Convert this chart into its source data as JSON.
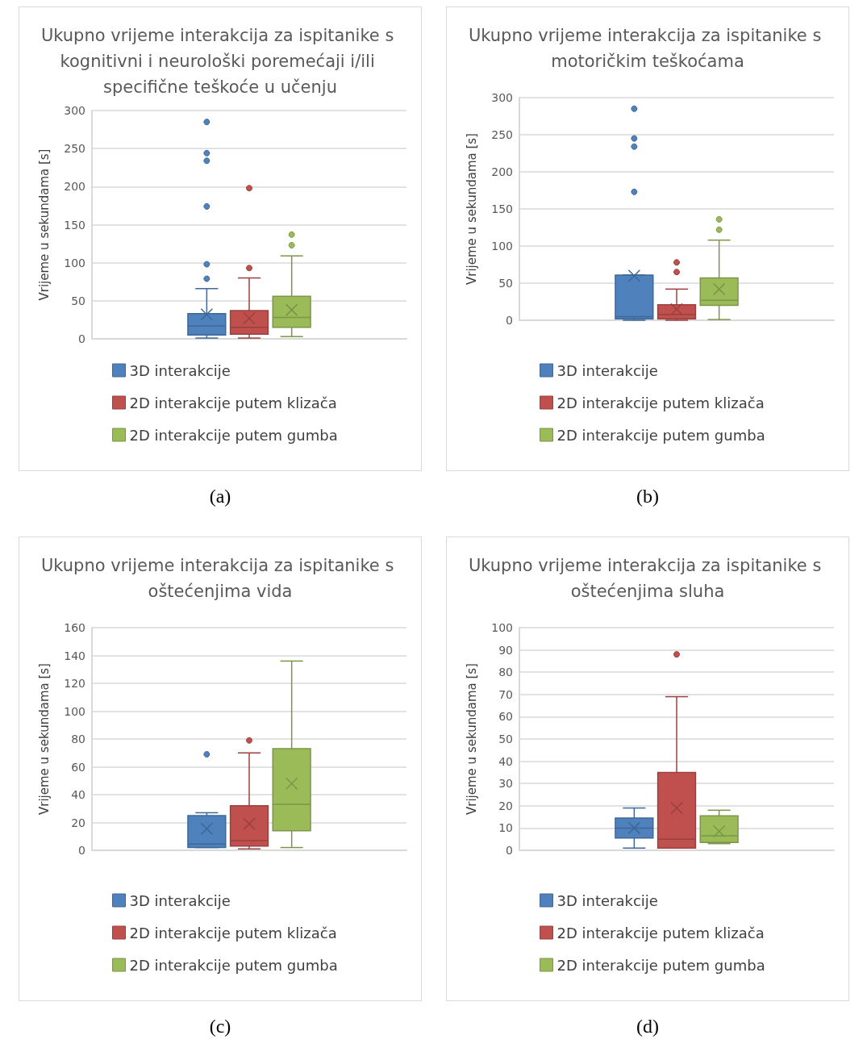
{
  "chart_data": [
    {
      "type": "box",
      "title": "Ukupno vrijeme interakcija za ispitanike s kognitivni i neurološki poremećaji i/ili specifične teškoće u učenju",
      "ylabel": "Vrijeme u sekundama [s]",
      "categories": [
        null
      ],
      "ylim": [
        0,
        300
      ],
      "yticks": [
        0,
        50,
        100,
        150,
        200,
        250,
        300
      ],
      "grid": "y",
      "legend": "bottom",
      "annotations": [
        "(a)"
      ],
      "series": [
        {
          "name": "3D interakcije",
          "color": "#4f81bd",
          "boxes": [
            {
              "low": 1,
              "q1": 5,
              "median": 17,
              "q3": 33,
              "high": 66,
              "mean": 32,
              "outliers": [
                79,
                98,
                174,
                234,
                244,
                285
              ]
            }
          ]
        },
        {
          "name": "2D interakcije putem klizača",
          "color": "#c0504d",
          "boxes": [
            {
              "low": 1,
              "q1": 6,
              "median": 15,
              "q3": 37,
              "high": 80,
              "mean": 27,
              "outliers": [
                93,
                198
              ]
            }
          ]
        },
        {
          "name": "2D interakcije putem gumba",
          "color": "#9bbb59",
          "boxes": [
            {
              "low": 3,
              "q1": 15,
              "median": 28,
              "q3": 56,
              "high": 109,
              "mean": 38,
              "outliers": [
                123,
                137
              ]
            }
          ]
        }
      ]
    },
    {
      "type": "box",
      "title": "Ukupno vrijeme interakcija za ispitanike s motoričkim teškoćama",
      "ylabel": "Vrijeme u sekundama [s]",
      "categories": [
        null
      ],
      "ylim": [
        0,
        300
      ],
      "yticks": [
        0,
        50,
        100,
        150,
        200,
        250,
        300
      ],
      "grid": "y",
      "legend": "bottom",
      "annotations": [
        "(b)"
      ],
      "series": [
        {
          "name": "3D interakcije",
          "color": "#4f81bd",
          "boxes": [
            {
              "low": 0,
              "q1": 2,
              "median": 5,
              "q3": 61,
              "high": 61,
              "mean": 60,
              "outliers": [
                173,
                234,
                245,
                285
              ]
            }
          ]
        },
        {
          "name": "2D interakcije putem klizača",
          "color": "#c0504d",
          "boxes": [
            {
              "low": 0,
              "q1": 2,
              "median": 8,
              "q3": 21,
              "high": 42,
              "mean": 15,
              "outliers": [
                65,
                78
              ]
            }
          ]
        },
        {
          "name": "2D interakcije putem gumba",
          "color": "#9bbb59",
          "boxes": [
            {
              "low": 1,
              "q1": 20,
              "median": 27,
              "q3": 57,
              "high": 108,
              "mean": 42,
              "outliers": [
                122,
                136
              ]
            }
          ]
        }
      ]
    },
    {
      "type": "box",
      "title": "Ukupno vrijeme interakcija za ispitanike s oštećenjima vida",
      "ylabel": "Vrijeme u sekundama [s]",
      "categories": [
        null
      ],
      "ylim": [
        0,
        160
      ],
      "yticks": [
        0,
        20,
        40,
        60,
        80,
        100,
        120,
        140,
        160
      ],
      "grid": "y",
      "legend": "bottom",
      "annotations": [
        "(c)"
      ],
      "series": [
        {
          "name": "3D interakcije",
          "color": "#4f81bd",
          "boxes": [
            {
              "low": 2,
              "q1": 2,
              "median": 4.5,
              "q3": 25,
              "high": 27,
              "mean": 15.5,
              "outliers": [
                69
              ]
            }
          ]
        },
        {
          "name": "2D interakcije putem klizača",
          "color": "#c0504d",
          "boxes": [
            {
              "low": 1,
              "q1": 3,
              "median": 7,
              "q3": 32,
              "high": 70,
              "mean": 19,
              "outliers": [
                79
              ]
            }
          ]
        },
        {
          "name": "2D interakcije putem gumba",
          "color": "#9bbb59",
          "boxes": [
            {
              "low": 2,
              "q1": 14,
              "median": 33,
              "q3": 73,
              "high": 136,
              "mean": 48
            }
          ]
        }
      ]
    },
    {
      "type": "box",
      "title": "Ukupno vrijeme interakcija za ispitanike s oštećenjima sluha",
      "ylabel": "Vrijeme u sekundama [s]",
      "categories": [
        null
      ],
      "ylim": [
        0,
        100
      ],
      "yticks": [
        0,
        10,
        20,
        30,
        40,
        50,
        60,
        70,
        80,
        90,
        100
      ],
      "grid": "y",
      "legend": "bottom",
      "annotations": [
        "(d)"
      ],
      "series": [
        {
          "name": "3D interakcije",
          "color": "#4f81bd",
          "boxes": [
            {
              "low": 1,
              "q1": 5.5,
              "median": 10,
              "q3": 14.5,
              "high": 19,
              "mean": 10
            }
          ]
        },
        {
          "name": "2D interakcije putem klizača",
          "color": "#c0504d",
          "boxes": [
            {
              "low": 1,
              "q1": 1,
              "median": 5,
              "q3": 35,
              "high": 69,
              "mean": 19,
              "outliers": [
                88
              ]
            }
          ]
        },
        {
          "name": "2D interakcije putem gumba",
          "color": "#9bbb59",
          "boxes": [
            {
              "low": 3,
              "q1": 3.5,
              "median": 6.5,
              "q3": 15.5,
              "high": 18,
              "mean": 8.5
            }
          ]
        }
      ]
    }
  ]
}
